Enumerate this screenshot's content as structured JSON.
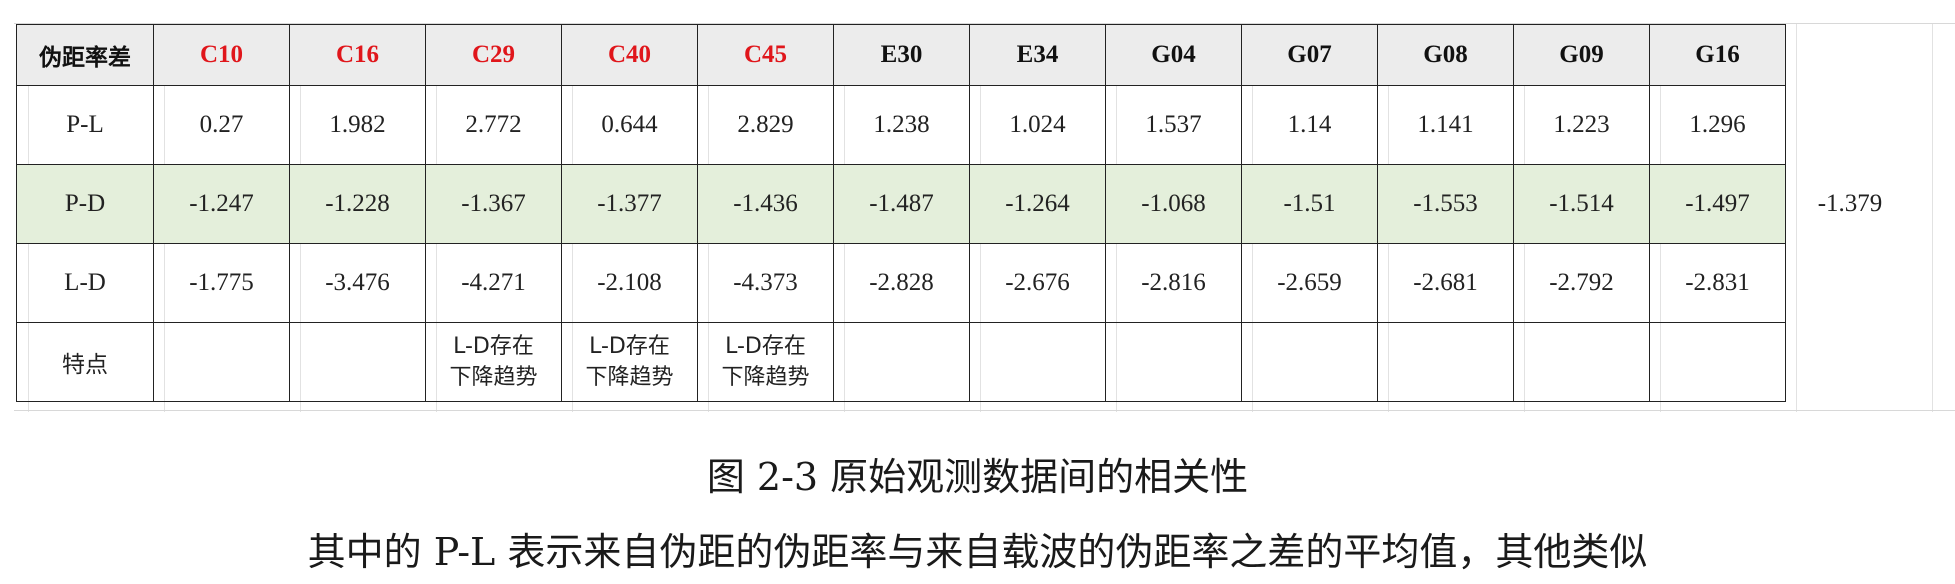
{
  "table": {
    "corner_label": "伪距率差",
    "columns": [
      {
        "label": "C10",
        "color": "#e0161b"
      },
      {
        "label": "C16",
        "color": "#e0161b"
      },
      {
        "label": "C29",
        "color": "#e0161b"
      },
      {
        "label": "C40",
        "color": "#e0161b"
      },
      {
        "label": "C45",
        "color": "#e0161b"
      },
      {
        "label": "E30",
        "color": "#111111"
      },
      {
        "label": "E34",
        "color": "#111111"
      },
      {
        "label": "G04",
        "color": "#111111"
      },
      {
        "label": "G07",
        "color": "#111111"
      },
      {
        "label": "G08",
        "color": "#111111"
      },
      {
        "label": "G09",
        "color": "#111111"
      },
      {
        "label": "G16",
        "color": "#111111"
      }
    ],
    "rows": {
      "pl": {
        "label": "P-L",
        "values": [
          "0.27",
          "1.982",
          "2.772",
          "0.644",
          "2.829",
          "1.238",
          "1.024",
          "1.537",
          "1.14",
          "1.141",
          "1.223",
          "1.296"
        ]
      },
      "pd": {
        "label": "P-D",
        "values": [
          "-1.247",
          "-1.228",
          "-1.367",
          "-1.377",
          "-1.436",
          "-1.487",
          "-1.264",
          "-1.068",
          "-1.51",
          "-1.553",
          "-1.514",
          "-1.497"
        ],
        "highlight_color": "#e4efdb"
      },
      "ld": {
        "label": "L-D",
        "values": [
          "-1.775",
          "-3.476",
          "-4.271",
          "-2.108",
          "-4.373",
          "-2.828",
          "-2.676",
          "-2.816",
          "-2.659",
          "-2.681",
          "-2.792",
          "-2.831"
        ]
      },
      "feature": {
        "label": "特点",
        "values": [
          "",
          "",
          "L-D存在\n下降趋势",
          "L-D存在\n下降趋势",
          "L-D存在\n下降趋势",
          "",
          "",
          "",
          "",
          "",
          "",
          ""
        ]
      }
    },
    "extra_value": "-1.379"
  },
  "caption": {
    "title": "图 2-3  原始观测数据间的相关性",
    "description": "其中的 P-L 表示来自伪距的伪距率与来自载波的伪距率之差的平均值，其他类似"
  }
}
